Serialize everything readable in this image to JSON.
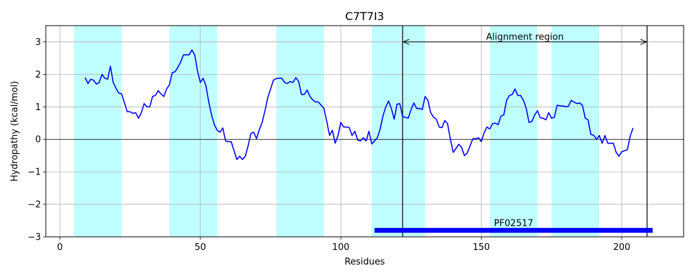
{
  "chart_data": {
    "type": "line",
    "title": "C7T7I3",
    "xlabel": "Residues",
    "ylabel": "Hydropathy (kcal/mol)",
    "xlim": [
      -5,
      222
    ],
    "ylim": [
      -3,
      3.5
    ],
    "x_ticks": [
      0,
      50,
      100,
      150,
      200
    ],
    "y_ticks": [
      -3,
      -2,
      -1,
      0,
      1,
      2,
      3
    ],
    "x_tick_labels": [
      "0",
      "50",
      "100",
      "150",
      "200"
    ],
    "y_tick_labels": [
      "−3",
      "−2",
      "−1",
      "0",
      "1",
      "2",
      "3"
    ],
    "grid": true,
    "zero_line": true,
    "line_color": "#0000ff",
    "band_color": "#c0ffff",
    "highlight_bands": [
      [
        5,
        22
      ],
      [
        39,
        56
      ],
      [
        77,
        94
      ],
      [
        111,
        130
      ],
      [
        153,
        170
      ],
      [
        175,
        192
      ]
    ],
    "series": [
      {
        "x": [
          9,
          10,
          11,
          12,
          13,
          14,
          15,
          16,
          17,
          18,
          19,
          20,
          21,
          22,
          23,
          24,
          25,
          26,
          27,
          28,
          29,
          30,
          31,
          32,
          33,
          34,
          35,
          36,
          37,
          38,
          39,
          40,
          41,
          42,
          43,
          44,
          45,
          46,
          47,
          48,
          49,
          50,
          51,
          52,
          53,
          54,
          55,
          56,
          57,
          58,
          59,
          60,
          61,
          62,
          63,
          64,
          65,
          66,
          67,
          68,
          69,
          70,
          71,
          72,
          73,
          74,
          75,
          76,
          77,
          78,
          79,
          80,
          81,
          82,
          83,
          84,
          85,
          86,
          87,
          88,
          89,
          90,
          91,
          92,
          93,
          94,
          95,
          96,
          97,
          98,
          99,
          100,
          101,
          102,
          103,
          104,
          105,
          106,
          107,
          108,
          109,
          110,
          111,
          112,
          113,
          114,
          115,
          116,
          117,
          118,
          119,
          120,
          121,
          122,
          123,
          124,
          125,
          126,
          127,
          128,
          129,
          130,
          131,
          132,
          133,
          134,
          135,
          136,
          137,
          138,
          139,
          140,
          141,
          142,
          143,
          144,
          145,
          146,
          147,
          148,
          149,
          150,
          151,
          152,
          153,
          154,
          155,
          156,
          157,
          158,
          159,
          160,
          161,
          162,
          163,
          164,
          165,
          166,
          167,
          168,
          169,
          170,
          171,
          172,
          173,
          174,
          175,
          176,
          177,
          178,
          179,
          180,
          181,
          182,
          183,
          184,
          185,
          186,
          187,
          188,
          189,
          190,
          191,
          192,
          193,
          194,
          195,
          196,
          197,
          198,
          199,
          200,
          201,
          202,
          203,
          204
        ],
        "y": [
          1.9,
          1.72,
          1.85,
          1.82,
          1.7,
          1.75,
          2.0,
          1.88,
          1.85,
          2.25,
          1.75,
          1.57,
          1.42,
          1.4,
          1.12,
          0.85,
          0.85,
          0.8,
          0.82,
          0.65,
          0.82,
          1.1,
          1.0,
          1.0,
          1.32,
          1.35,
          1.5,
          1.4,
          1.32,
          1.55,
          1.68,
          2.05,
          2.08,
          2.22,
          2.38,
          2.6,
          2.6,
          2.6,
          2.75,
          2.6,
          2.1,
          1.75,
          1.88,
          1.65,
          1.15,
          0.75,
          0.45,
          0.28,
          0.22,
          0.35,
          -0.05,
          -0.07,
          -0.08,
          -0.35,
          -0.62,
          -0.52,
          -0.62,
          -0.52,
          -0.2,
          0.18,
          0.22,
          0.02,
          0.3,
          0.52,
          0.88,
          1.28,
          1.55,
          1.82,
          1.87,
          1.88,
          1.88,
          1.75,
          1.72,
          1.78,
          1.75,
          1.9,
          1.78,
          1.38,
          1.38,
          1.52,
          1.32,
          1.22,
          1.15,
          1.15,
          1.05,
          0.95,
          0.55,
          0.12,
          0.28,
          -0.12,
          0.12,
          0.52,
          0.38,
          0.38,
          0.36,
          0.12,
          0.25,
          -0.02,
          -0.05,
          0.05,
          -0.05,
          0.25,
          -0.14,
          -0.05,
          0.05,
          0.32,
          0.72,
          1.0,
          1.18,
          0.95,
          0.62,
          1.08,
          1.1,
          0.7,
          0.68,
          0.65,
          0.92,
          1.12,
          0.95,
          0.95,
          0.92,
          1.32,
          1.2,
          0.82,
          0.68,
          0.62,
          0.38,
          0.36,
          0.58,
          0.48,
          0.0,
          -0.4,
          -0.28,
          -0.15,
          -0.25,
          -0.5,
          -0.42,
          -0.2,
          0.02,
          0.02,
          0.05,
          -0.07,
          0.2,
          0.38,
          0.32,
          0.48,
          0.5,
          0.45,
          0.72,
          0.75,
          1.2,
          1.35,
          1.38,
          1.55,
          1.35,
          1.35,
          1.2,
          0.95,
          0.52,
          0.55,
          0.75,
          0.88,
          0.66,
          0.65,
          0.6,
          0.82,
          0.65,
          0.68,
          1.05,
          1.03,
          1.03,
          1.0,
          1.02,
          1.2,
          1.15,
          1.1,
          1.12,
          1.05,
          0.65,
          0.6,
          0.15,
          0.13,
          0.0,
          0.12,
          -0.12,
          0.12,
          -0.12,
          -0.12,
          -0.12,
          -0.4,
          -0.52,
          -0.38,
          -0.35,
          -0.32,
          0.1,
          0.35
        ]
      }
    ],
    "alignment": {
      "label": "Alignment region",
      "start": 122,
      "end": 209,
      "arrow_y": 3.0
    },
    "domain_bar": {
      "label": "PF02517",
      "start": 112,
      "end": 211,
      "y": -2.8,
      "color": "#0000ff"
    }
  }
}
